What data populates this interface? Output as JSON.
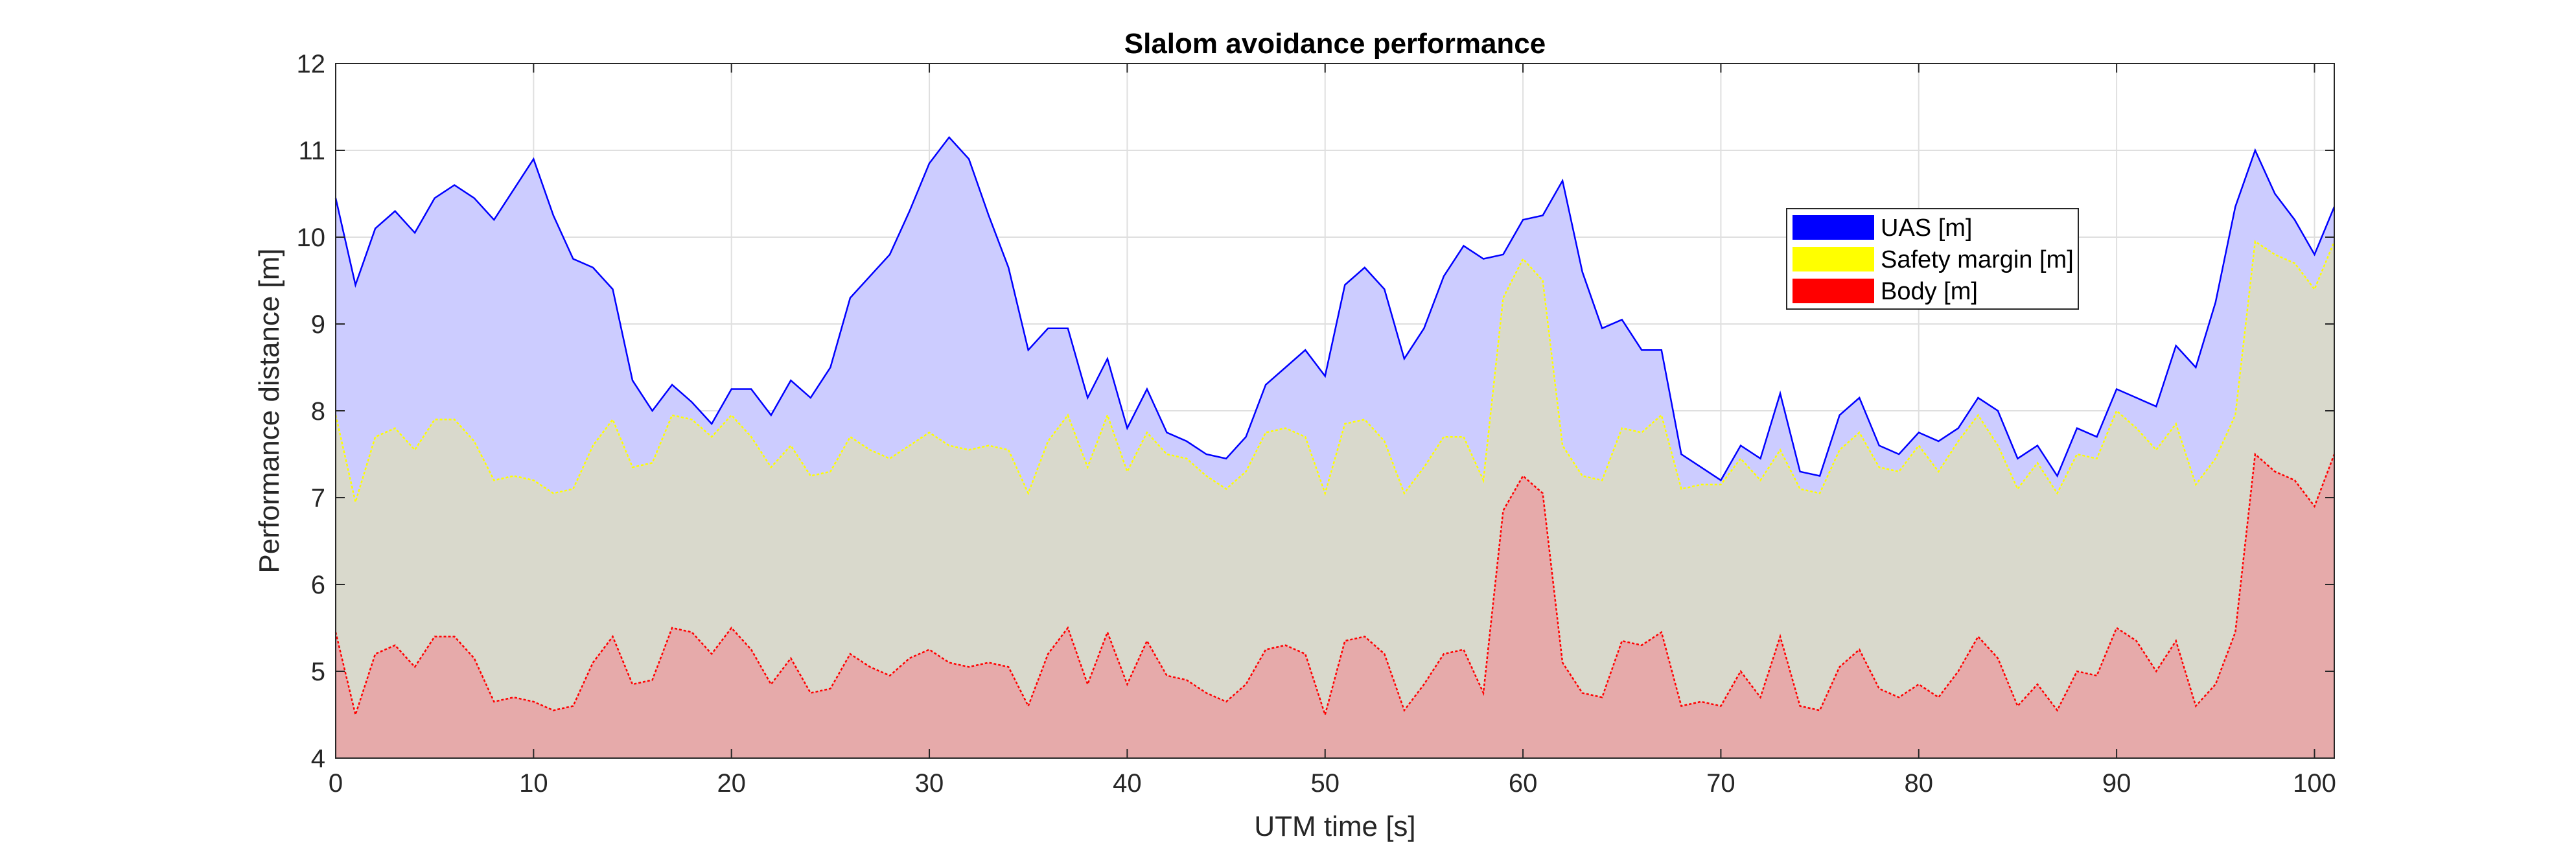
{
  "chart_data": {
    "type": "area",
    "title": "Slalom avoidance performance",
    "xlabel": "UTM time [s]",
    "ylabel": "Performance distance [m]",
    "xlim": [
      0,
      101
    ],
    "ylim": [
      4,
      12
    ],
    "xticks": [
      0,
      10,
      20,
      30,
      40,
      50,
      60,
      70,
      80,
      90,
      100
    ],
    "yticks": [
      4,
      5,
      6,
      7,
      8,
      9,
      10,
      11,
      12
    ],
    "grid": true,
    "legend_position": "upper-right",
    "x": [
      0,
      1,
      2,
      3,
      4,
      5,
      6,
      7,
      8,
      9,
      10,
      11,
      12,
      13,
      14,
      15,
      16,
      17,
      18,
      19,
      20,
      21,
      22,
      23,
      24,
      25,
      26,
      27,
      28,
      29,
      30,
      31,
      32,
      33,
      34,
      35,
      36,
      37,
      38,
      39,
      40,
      41,
      42,
      43,
      44,
      45,
      46,
      47,
      48,
      49,
      50,
      51,
      52,
      53,
      54,
      55,
      56,
      57,
      58,
      59,
      60,
      61,
      62,
      63,
      64,
      65,
      66,
      67,
      68,
      69,
      70,
      71,
      72,
      73,
      74,
      75,
      76,
      77,
      78,
      79,
      80,
      81,
      82,
      83,
      84,
      85,
      86,
      87,
      88,
      89,
      90,
      91,
      92,
      93,
      94,
      95,
      96,
      97,
      98,
      99,
      100,
      101
    ],
    "series": [
      {
        "name": "UAS [m]",
        "color": "#0000ff",
        "fill": "#ccccff",
        "values": [
          10.45,
          9.45,
          10.1,
          10.3,
          10.05,
          10.45,
          10.6,
          10.45,
          10.2,
          10.55,
          10.9,
          10.25,
          9.75,
          9.65,
          9.4,
          8.35,
          8.0,
          8.3,
          8.1,
          7.85,
          8.25,
          8.25,
          7.95,
          8.35,
          8.15,
          8.5,
          9.3,
          9.55,
          9.8,
          10.3,
          10.85,
          11.15,
          10.9,
          10.25,
          9.65,
          8.7,
          8.95,
          8.95,
          8.15,
          8.6,
          7.8,
          8.25,
          7.75,
          7.65,
          7.5,
          7.45,
          7.7,
          8.3,
          8.5,
          8.7,
          8.4,
          9.45,
          9.65,
          9.4,
          8.6,
          8.95,
          9.55,
          9.9,
          9.75,
          9.8,
          10.2,
          10.25,
          10.65,
          9.6,
          8.95,
          9.05,
          8.7,
          8.7,
          7.5,
          7.35,
          7.2,
          7.6,
          7.45,
          8.2,
          7.3,
          7.25,
          7.95,
          8.15,
          7.6,
          7.5,
          7.75,
          7.65,
          7.8,
          8.15,
          8.0,
          7.45,
          7.6,
          7.25,
          7.8,
          7.7,
          8.25,
          8.15,
          8.05,
          8.75,
          8.5,
          9.25,
          10.35,
          11.0,
          10.5,
          10.2,
          9.8,
          10.35
        ]
      },
      {
        "name": "Safety margin [m]",
        "color": "#ffff00",
        "fill": "#d9d9cc",
        "values": [
          7.95,
          6.95,
          7.7,
          7.8,
          7.55,
          7.9,
          7.9,
          7.65,
          7.2,
          7.25,
          7.2,
          7.05,
          7.1,
          7.6,
          7.9,
          7.35,
          7.4,
          7.95,
          7.9,
          7.7,
          7.95,
          7.7,
          7.35,
          7.6,
          7.25,
          7.3,
          7.7,
          7.55,
          7.45,
          7.6,
          7.75,
          7.6,
          7.55,
          7.6,
          7.55,
          7.05,
          7.65,
          7.95,
          7.35,
          7.95,
          7.3,
          7.75,
          7.5,
          7.45,
          7.25,
          7.1,
          7.3,
          7.75,
          7.8,
          7.7,
          7.05,
          7.85,
          7.9,
          7.65,
          7.05,
          7.35,
          7.7,
          7.7,
          7.2,
          9.3,
          9.75,
          9.5,
          7.6,
          7.25,
          7.2,
          7.8,
          7.75,
          7.95,
          7.1,
          7.15,
          7.15,
          7.45,
          7.2,
          7.55,
          7.1,
          7.05,
          7.55,
          7.75,
          7.35,
          7.3,
          7.6,
          7.3,
          7.65,
          7.95,
          7.6,
          7.1,
          7.4,
          7.05,
          7.5,
          7.45,
          8.0,
          7.8,
          7.55,
          7.85,
          7.15,
          7.45,
          7.95,
          9.95,
          9.8,
          9.7,
          9.4,
          9.95
        ]
      },
      {
        "name": "Body [m]",
        "color": "#ff0000",
        "fill": "#e6aaaa",
        "values": [
          5.45,
          4.5,
          5.2,
          5.3,
          5.05,
          5.4,
          5.4,
          5.15,
          4.65,
          4.7,
          4.65,
          4.55,
          4.6,
          5.1,
          5.4,
          4.85,
          4.9,
          5.5,
          5.45,
          5.2,
          5.5,
          5.25,
          4.85,
          5.15,
          4.75,
          4.8,
          5.2,
          5.05,
          4.95,
          5.15,
          5.25,
          5.1,
          5.05,
          5.1,
          5.05,
          4.6,
          5.2,
          5.5,
          4.85,
          5.45,
          4.85,
          5.35,
          4.95,
          4.9,
          4.75,
          4.65,
          4.85,
          5.25,
          5.3,
          5.2,
          4.5,
          5.35,
          5.4,
          5.2,
          4.55,
          4.85,
          5.2,
          5.25,
          4.75,
          6.85,
          7.25,
          7.05,
          5.1,
          4.75,
          4.7,
          5.35,
          5.3,
          5.45,
          4.6,
          4.65,
          4.6,
          5.0,
          4.7,
          5.4,
          4.6,
          4.55,
          5.05,
          5.25,
          4.8,
          4.7,
          4.85,
          4.7,
          5.0,
          5.4,
          5.15,
          4.6,
          4.85,
          4.55,
          5.0,
          4.95,
          5.5,
          5.35,
          5.0,
          5.35,
          4.6,
          4.85,
          5.45,
          7.5,
          7.3,
          7.2,
          6.9,
          7.5
        ]
      }
    ]
  }
}
